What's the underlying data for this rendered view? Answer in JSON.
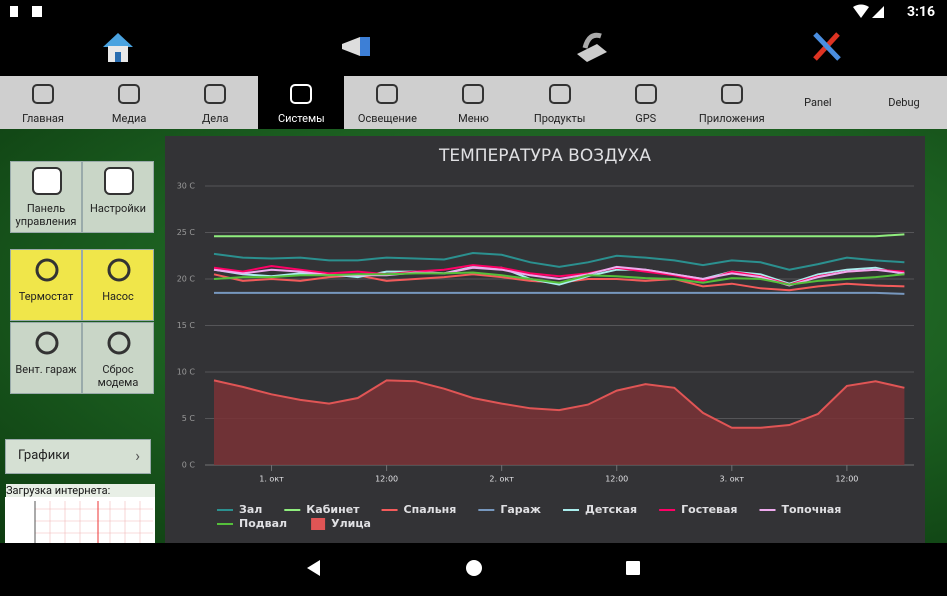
{
  "status_bar": {
    "time": "3:16"
  },
  "tabs": [
    "Главная",
    "Медиа",
    "Дела",
    "Системы",
    "Освещение",
    "Меню",
    "Продукты",
    "GPS",
    "Приложения",
    "Panel",
    "Debug"
  ],
  "selected_tab": 3,
  "side_buttons": [
    "Панель управления",
    "Настройки",
    "Термостат",
    "Насос",
    "Вент. гараж",
    "Сброс модема"
  ],
  "graphs_button": "Графики",
  "internet_label": "Загрузка интернета:",
  "chart_data": {
    "type": "line",
    "title": "ТЕМПЕРАТУРА ВОЗДУХА",
    "x": [
      -6,
      -3,
      0,
      3,
      6,
      9,
      12,
      15,
      18,
      21,
      24,
      27,
      30,
      33,
      36,
      39,
      42,
      45,
      48,
      51,
      54,
      57,
      60,
      63,
      66
    ],
    "xlim": [
      -6,
      67
    ],
    "xticks": [
      {
        "value": 0,
        "label": "1. окт"
      },
      {
        "value": 12,
        "label": "12:00"
      },
      {
        "value": 24,
        "label": "2. окт"
      },
      {
        "value": 36,
        "label": "12:00"
      },
      {
        "value": 48,
        "label": "3. окт"
      },
      {
        "value": 60,
        "label": "12:00"
      }
    ],
    "ylim": [
      0,
      30
    ],
    "yticks": [
      {
        "value": 0,
        "label": "0 C"
      },
      {
        "value": 5,
        "label": "5 C"
      },
      {
        "value": 10,
        "label": "10 C"
      },
      {
        "value": 15,
        "label": "15 C"
      },
      {
        "value": 20,
        "label": "20 C"
      },
      {
        "value": 25,
        "label": "25 C"
      },
      {
        "value": 30,
        "label": "30 C"
      }
    ],
    "grid": true,
    "series": [
      {
        "name": "Зал",
        "color": "#2b908f",
        "values": [
          22.7,
          22.3,
          22.2,
          22.3,
          22.0,
          22.0,
          22.3,
          22.2,
          22.1,
          22.8,
          22.6,
          21.8,
          21.3,
          21.8,
          22.5,
          22.3,
          22.0,
          21.5,
          22.0,
          21.8,
          21.0,
          21.6,
          22.3,
          22.0,
          21.8
        ]
      },
      {
        "name": "Кабинет",
        "color": "#90ee7e",
        "values": [
          24.6,
          24.6,
          24.6,
          24.6,
          24.6,
          24.6,
          24.6,
          24.6,
          24.6,
          24.6,
          24.6,
          24.6,
          24.6,
          24.6,
          24.6,
          24.6,
          24.6,
          24.6,
          24.6,
          24.6,
          24.6,
          24.6,
          24.6,
          24.6,
          24.8
        ]
      },
      {
        "name": "Спальня",
        "color": "#f45b5b",
        "values": [
          20.5,
          19.8,
          20.0,
          19.8,
          20.2,
          20.4,
          19.8,
          20.0,
          20.2,
          20.5,
          20.2,
          19.8,
          19.6,
          20.0,
          20.0,
          19.8,
          20.0,
          19.2,
          19.5,
          19.0,
          18.8,
          19.2,
          19.5,
          19.3,
          19.2
        ]
      },
      {
        "name": "Гараж",
        "color": "#7798bf",
        "values": [
          18.5,
          18.5,
          18.5,
          18.5,
          18.5,
          18.5,
          18.5,
          18.5,
          18.5,
          18.5,
          18.5,
          18.5,
          18.5,
          18.5,
          18.5,
          18.5,
          18.5,
          18.5,
          18.5,
          18.5,
          18.5,
          18.5,
          18.5,
          18.5,
          18.4
        ]
      },
      {
        "name": "Детская",
        "color": "#aaeeee",
        "values": [
          21.0,
          20.5,
          20.3,
          20.6,
          20.5,
          20.2,
          20.8,
          20.8,
          20.6,
          21.3,
          21.2,
          20.0,
          19.4,
          20.3,
          21.0,
          21.0,
          20.5,
          20.0,
          20.8,
          20.5,
          19.5,
          20.5,
          21.0,
          21.2,
          20.5
        ]
      },
      {
        "name": "Гостевая",
        "color": "#ff0066",
        "values": [
          21.2,
          20.8,
          21.4,
          21.0,
          20.6,
          20.8,
          20.5,
          20.8,
          21.0,
          21.5,
          21.2,
          20.6,
          20.3,
          20.6,
          21.2,
          20.8,
          20.4,
          19.8,
          20.8,
          20.3,
          19.4,
          20.3,
          20.8,
          21.0,
          20.8
        ]
      },
      {
        "name": "Топочная",
        "color": "#eeaaee",
        "values": [
          21.0,
          20.6,
          21.0,
          20.8,
          20.4,
          20.4,
          20.4,
          20.7,
          20.6,
          21.2,
          21.0,
          20.4,
          20.0,
          20.5,
          21.3,
          21.0,
          20.5,
          20.0,
          20.6,
          20.2,
          19.3,
          20.2,
          20.8,
          21.0,
          20.6
        ]
      },
      {
        "name": "Подвал",
        "color": "#55bf3b",
        "values": [
          20.0,
          20.2,
          20.2,
          20.4,
          20.4,
          20.5,
          20.5,
          20.6,
          20.6,
          20.7,
          20.4,
          20.0,
          19.6,
          20.4,
          20.3,
          20.1,
          20.0,
          19.6,
          20.1,
          20.0,
          19.4,
          19.8,
          20.0,
          20.2,
          20.5
        ]
      },
      {
        "name": "Улица",
        "color": "#e05555",
        "type": "area",
        "fill": "#7a3236",
        "values": [
          9.1,
          8.4,
          7.6,
          7.0,
          6.6,
          7.2,
          9.1,
          9.0,
          8.2,
          7.2,
          6.6,
          6.1,
          5.9,
          6.5,
          8.0,
          8.7,
          8.3,
          5.6,
          4.0,
          4.0,
          4.3,
          5.5,
          8.5,
          9.0,
          8.3
        ]
      }
    ]
  }
}
